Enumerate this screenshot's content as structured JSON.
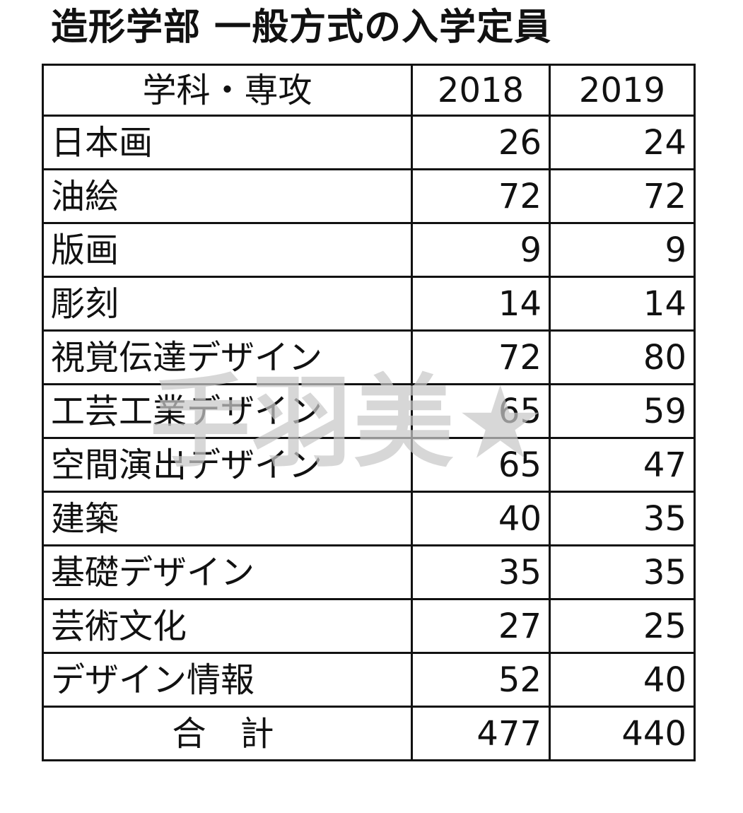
{
  "title": "造形学部 一般方式の入学定員",
  "table": {
    "headers": [
      "学科・専攻",
      "2018",
      "2019"
    ],
    "rows": [
      {
        "name": "日本画",
        "y2018": "26",
        "y2019": "24"
      },
      {
        "name": "油絵",
        "y2018": "72",
        "y2019": "72"
      },
      {
        "name": "版画",
        "y2018": "9",
        "y2019": "9"
      },
      {
        "name": "彫刻",
        "y2018": "14",
        "y2019": "14"
      },
      {
        "name": "視覚伝達デザイン",
        "y2018": "72",
        "y2019": "80"
      },
      {
        "name": "工芸工業デザイン",
        "y2018": "65",
        "y2019": "59"
      },
      {
        "name": "空間演出デザイン",
        "y2018": "65",
        "y2019": "47"
      },
      {
        "name": "建築",
        "y2018": "40",
        "y2019": "35"
      },
      {
        "name": "基礎デザイン",
        "y2018": "35",
        "y2019": "35"
      },
      {
        "name": "芸術文化",
        "y2018": "27",
        "y2019": "25"
      },
      {
        "name": "デザイン情報",
        "y2018": "52",
        "y2019": "40"
      }
    ],
    "total": {
      "name": "合計",
      "y2018": "477",
      "y2019": "440"
    }
  },
  "watermark": "手羽美★"
}
